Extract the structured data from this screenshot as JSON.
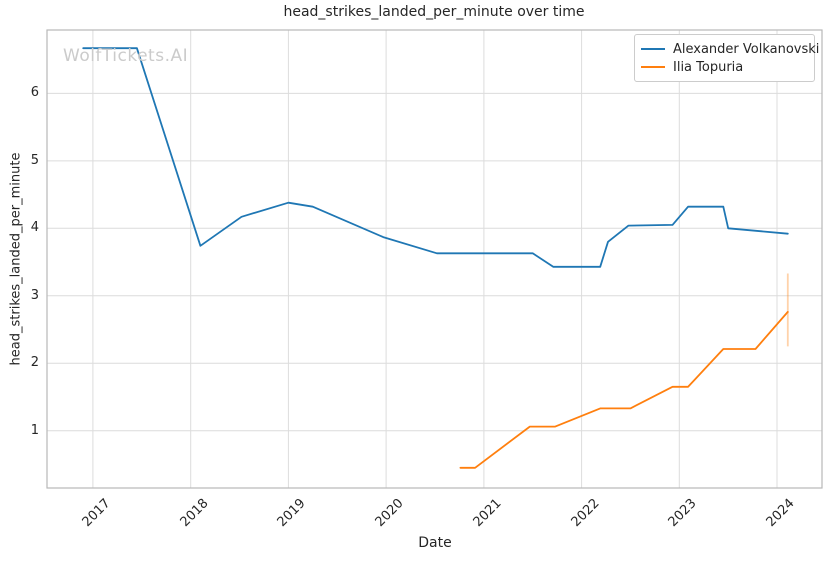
{
  "watermark": "WolfTickets.AI",
  "colors": {
    "series_blue": "#1f77b4",
    "series_orange": "#ff7f0e",
    "grid": "#dcdcdc",
    "spine": "#b8b8b8",
    "text": "#262626",
    "watermark": "#cbcbcb",
    "background": "#ffffff"
  },
  "chart_data": {
    "type": "line",
    "title": "head_strikes_landed_per_minute over time",
    "xlabel": "Date",
    "ylabel": "head_strikes_landed_per_minute",
    "xlim": [
      2016.53,
      2024.46
    ],
    "ylim": [
      0.15,
      6.94
    ],
    "grid": true,
    "legend_position": "top-right",
    "x_ticks": [
      {
        "value": 2017,
        "label": "2017"
      },
      {
        "value": 2018,
        "label": "2018"
      },
      {
        "value": 2019,
        "label": "2019"
      },
      {
        "value": 2020,
        "label": "2020"
      },
      {
        "value": 2021,
        "label": "2021"
      },
      {
        "value": 2022,
        "label": "2022"
      },
      {
        "value": 2023,
        "label": "2023"
      },
      {
        "value": 2024,
        "label": "2024"
      }
    ],
    "y_ticks": [
      {
        "value": 1,
        "label": "1"
      },
      {
        "value": 2,
        "label": "2"
      },
      {
        "value": 3,
        "label": "3"
      },
      {
        "value": 4,
        "label": "4"
      },
      {
        "value": 5,
        "label": "5"
      },
      {
        "value": 6,
        "label": "6"
      }
    ],
    "series": [
      {
        "name": "Alexander Volkanovski",
        "color": "#1f77b4",
        "points": [
          [
            2016.9,
            6.67
          ],
          [
            2017.45,
            6.67
          ],
          [
            2018.1,
            3.74
          ],
          [
            2018.52,
            4.17
          ],
          [
            2019.0,
            4.38
          ],
          [
            2019.25,
            4.32
          ],
          [
            2019.97,
            3.87
          ],
          [
            2020.52,
            3.63
          ],
          [
            2021.5,
            3.63
          ],
          [
            2021.71,
            3.43
          ],
          [
            2022.19,
            3.43
          ],
          [
            2022.27,
            3.8
          ],
          [
            2022.48,
            4.04
          ],
          [
            2022.93,
            4.05
          ],
          [
            2023.09,
            4.32
          ],
          [
            2023.45,
            4.32
          ],
          [
            2023.5,
            4.0
          ],
          [
            2024.11,
            3.92
          ]
        ]
      },
      {
        "name": "Ilia Topuria",
        "color": "#ff7f0e",
        "points": [
          [
            2020.76,
            0.45
          ],
          [
            2020.91,
            0.45
          ],
          [
            2021.47,
            1.06
          ],
          [
            2021.73,
            1.06
          ],
          [
            2022.19,
            1.33
          ],
          [
            2022.5,
            1.33
          ],
          [
            2022.93,
            1.65
          ],
          [
            2023.09,
            1.65
          ],
          [
            2023.45,
            2.21
          ],
          [
            2023.78,
            2.21
          ],
          [
            2024.11,
            2.76
          ]
        ],
        "error_bar": {
          "x": 2024.11,
          "y_low": 2.25,
          "y_high": 3.33
        }
      }
    ]
  }
}
